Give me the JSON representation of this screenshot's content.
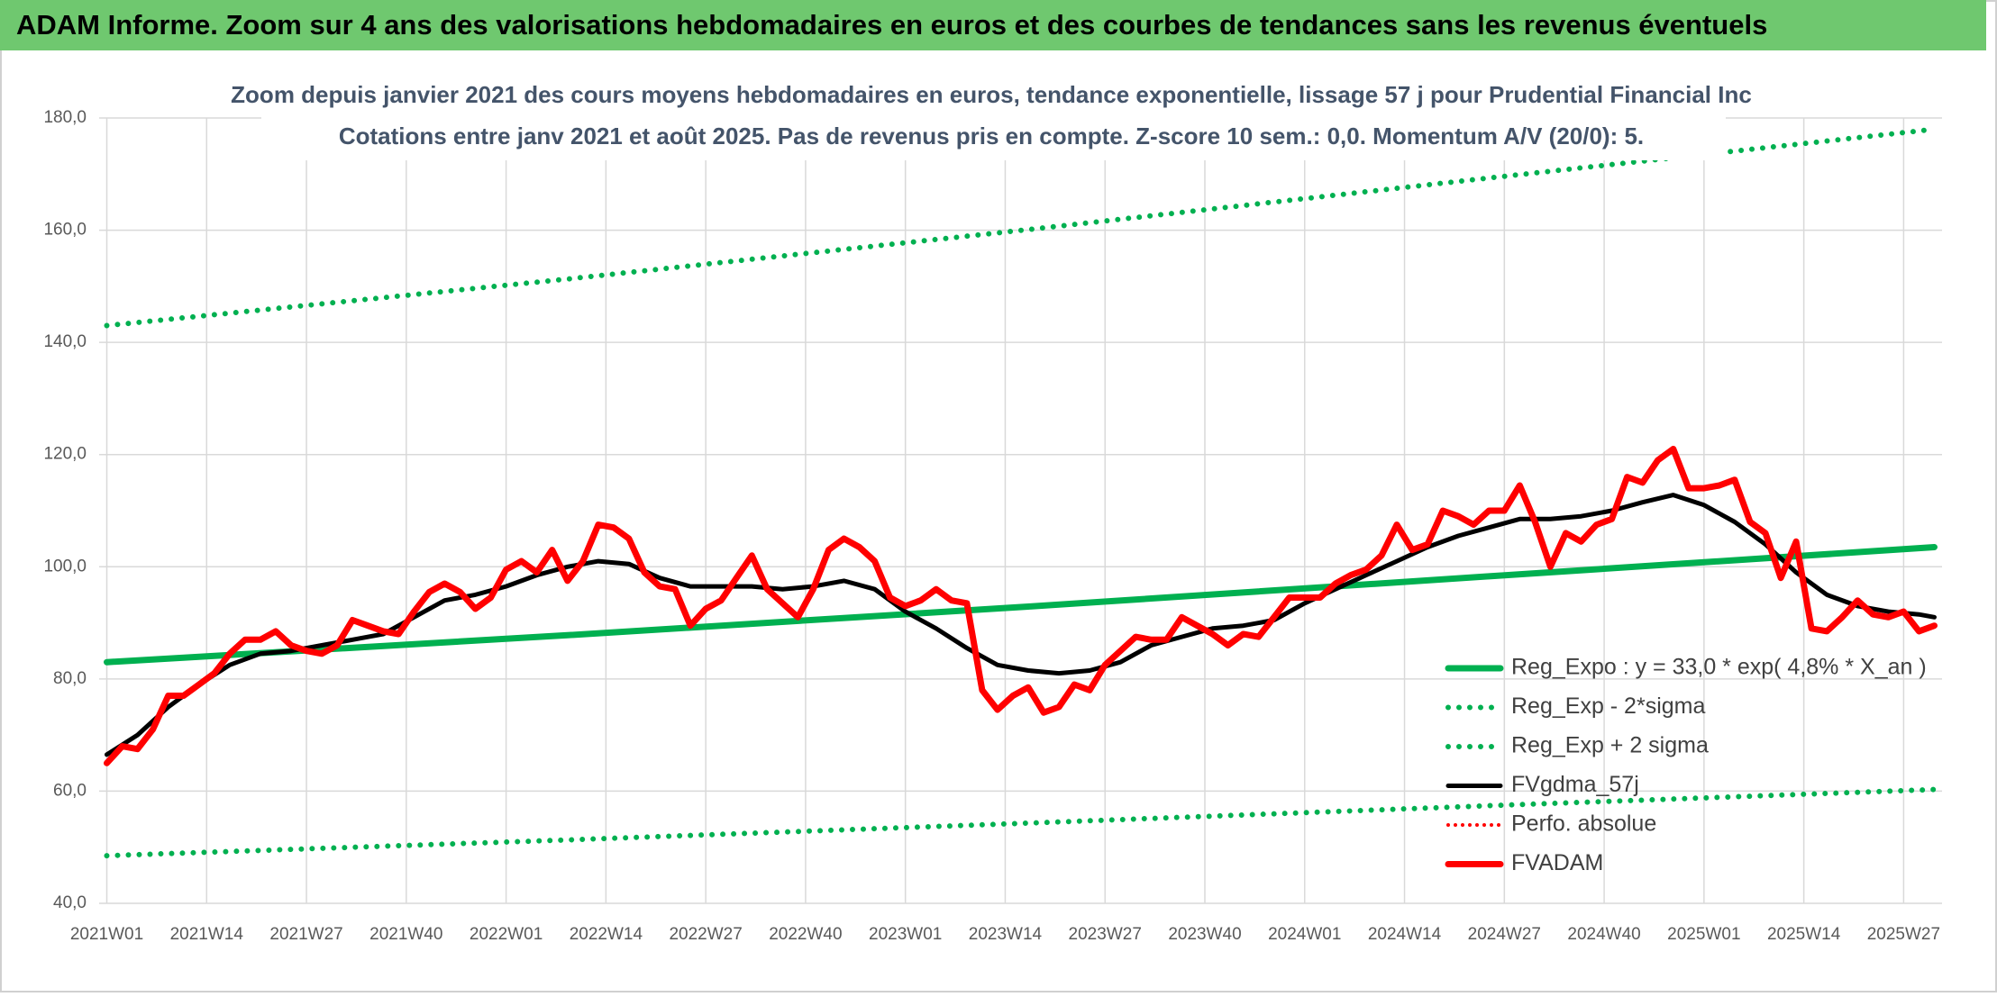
{
  "header": {
    "title": "ADAM Informe. Zoom sur 4 ans des valorisations hebdomadaires en euros et des courbes de tendances sans les revenus éventuels"
  },
  "chart_data": {
    "type": "line",
    "title": "Zoom depuis janvier 2021 des cours moyens hebdomadaires en euros, tendance exponentielle, lissage 57 j pour Prudential Financial Inc",
    "subtitle": "Cotations entre janv 2021 et août 2025. Pas de revenus pris en compte. Z-score 10 sem.: 0,0. Momentum A/V (20/0): 5.",
    "xlim": [
      -1,
      239
    ],
    "xticks": [
      {
        "value": 0,
        "label": "2021W01"
      },
      {
        "value": 13,
        "label": "2021W14"
      },
      {
        "value": 26,
        "label": "2021W27"
      },
      {
        "value": 39,
        "label": "2021W40"
      },
      {
        "value": 52,
        "label": "2022W01"
      },
      {
        "value": 65,
        "label": "2022W14"
      },
      {
        "value": 78,
        "label": "2022W27"
      },
      {
        "value": 91,
        "label": "2022W40"
      },
      {
        "value": 104,
        "label": "2023W01"
      },
      {
        "value": 117,
        "label": "2023W14"
      },
      {
        "value": 130,
        "label": "2023W27"
      },
      {
        "value": 143,
        "label": "2023W40"
      },
      {
        "value": 156,
        "label": "2024W01"
      },
      {
        "value": 169,
        "label": "2024W14"
      },
      {
        "value": 182,
        "label": "2024W27"
      },
      {
        "value": 195,
        "label": "2024W40"
      },
      {
        "value": 208,
        "label": "2025W01"
      },
      {
        "value": 221,
        "label": "2025W14"
      },
      {
        "value": 234,
        "label": "2025W27"
      }
    ],
    "ylim": [
      40,
      180
    ],
    "yticks": [
      {
        "value": 40,
        "label": "40,0"
      },
      {
        "value": 60,
        "label": "60,0"
      },
      {
        "value": 80,
        "label": "80,0"
      },
      {
        "value": 100,
        "label": "100,0"
      },
      {
        "value": 120,
        "label": "120,0"
      },
      {
        "value": 140,
        "label": "140,0"
      },
      {
        "value": 160,
        "label": "160,0"
      },
      {
        "value": 180,
        "label": "180,0"
      }
    ],
    "grid": true,
    "legend": "lower right",
    "series": [
      {
        "name": "Reg_Expo : y = 33,0 * exp( 4,8% *  X_an )",
        "color": "#00b050",
        "style": "solid",
        "width": 7,
        "x": [
          0,
          60,
          120,
          180,
          238
        ],
        "values": [
          83,
          87.8,
          92.9,
          98.3,
          103.5
        ]
      },
      {
        "name": "Reg_Exp - 2*sigma",
        "color": "#00b050",
        "style": "dotted",
        "width": 6,
        "x": [
          0,
          60,
          120,
          180,
          238
        ],
        "values": [
          48.5,
          51.3,
          54.3,
          57.4,
          60.3
        ]
      },
      {
        "name": "Reg_Exp + 2 sigma",
        "color": "#00b050",
        "style": "dotted",
        "width": 6,
        "x": [
          0,
          60,
          120,
          180,
          238
        ],
        "values": [
          143,
          151.3,
          160.1,
          169.3,
          178
        ]
      },
      {
        "name": "FVgdma_57j",
        "color": "#000000",
        "style": "solid",
        "width": 5,
        "x": [
          0,
          4,
          8,
          12,
          16,
          20,
          24,
          28,
          32,
          36,
          40,
          44,
          48,
          52,
          56,
          60,
          64,
          68,
          72,
          76,
          80,
          84,
          88,
          92,
          96,
          100,
          104,
          108,
          112,
          116,
          120,
          124,
          128,
          132,
          136,
          140,
          144,
          148,
          152,
          156,
          160,
          164,
          168,
          172,
          176,
          180,
          184,
          188,
          192,
          196,
          200,
          204,
          208,
          212,
          216,
          220,
          224,
          228,
          232,
          236,
          238
        ],
        "values": [
          66.5,
          70,
          75,
          79,
          82.5,
          84.5,
          85,
          86,
          87,
          88,
          91,
          94,
          95,
          96.5,
          98.5,
          100,
          101,
          100.5,
          98,
          96.5,
          96.5,
          96.5,
          96,
          96.5,
          97.5,
          96,
          92,
          89,
          85.5,
          82.5,
          81.5,
          81,
          81.5,
          83,
          86,
          87.5,
          89,
          89.5,
          90.5,
          93.5,
          96,
          98.5,
          101,
          103.5,
          105.5,
          107,
          108.5,
          108.5,
          109,
          110,
          111.5,
          112.8,
          111,
          108,
          104,
          99,
          95,
          93,
          92,
          91.5,
          91
        ]
      },
      {
        "name": "Perfo. absolue",
        "color": "#ff0000",
        "style": "dotted",
        "width": 4,
        "x": [],
        "values": []
      },
      {
        "name": "FVADAM",
        "color": "#ff0000",
        "style": "solid",
        "width": 7,
        "x": [
          0,
          2,
          4,
          6,
          8,
          10,
          12,
          14,
          16,
          18,
          20,
          22,
          24,
          26,
          28,
          30,
          32,
          34,
          36,
          38,
          40,
          42,
          44,
          46,
          48,
          50,
          52,
          54,
          56,
          58,
          60,
          62,
          64,
          66,
          68,
          70,
          72,
          74,
          76,
          78,
          80,
          82,
          84,
          86,
          88,
          90,
          92,
          94,
          96,
          98,
          100,
          102,
          104,
          106,
          108,
          110,
          112,
          114,
          116,
          118,
          120,
          122,
          124,
          126,
          128,
          130,
          132,
          134,
          136,
          138,
          140,
          142,
          144,
          146,
          148,
          150,
          152,
          154,
          156,
          158,
          160,
          162,
          164,
          166,
          168,
          170,
          172,
          174,
          176,
          178,
          180,
          182,
          184,
          186,
          188,
          190,
          192,
          194,
          196,
          198,
          200,
          202,
          204,
          206,
          208,
          210,
          212,
          214,
          216,
          218,
          220,
          222,
          224,
          226,
          228,
          230,
          232,
          234,
          236,
          238
        ],
        "values": [
          65,
          68,
          67.5,
          71,
          77,
          77,
          79,
          81,
          84.5,
          87,
          87,
          88.5,
          86,
          85,
          84.5,
          86,
          90.5,
          89.5,
          88.5,
          88,
          92,
          95.5,
          97,
          95.5,
          92.5,
          94.5,
          99.5,
          101,
          99,
          103,
          97.5,
          101,
          107.5,
          107,
          105,
          99,
          96.5,
          96,
          89.5,
          92.5,
          94,
          98,
          102,
          96,
          93.5,
          91,
          96,
          103,
          105,
          103.5,
          101,
          94.5,
          93,
          94,
          96,
          94,
          93.5,
          78,
          74.5,
          77,
          78.5,
          74,
          75,
          79,
          78,
          82.5,
          85,
          87.5,
          87,
          87,
          91,
          89.5,
          88,
          86,
          88,
          87.5,
          91,
          94.5,
          94.5,
          94.5,
          97,
          98.5,
          99.5,
          102,
          107.5,
          103,
          104,
          110,
          109,
          107.5,
          110,
          110,
          114.5,
          108,
          100,
          106,
          104.5,
          107.5,
          108.5,
          116,
          115,
          119,
          121,
          114,
          114,
          114.5,
          115.5,
          108,
          106,
          98,
          104.5,
          89,
          88.5,
          91,
          94,
          91.5,
          91,
          92,
          88.5,
          89.5
        ]
      }
    ]
  }
}
